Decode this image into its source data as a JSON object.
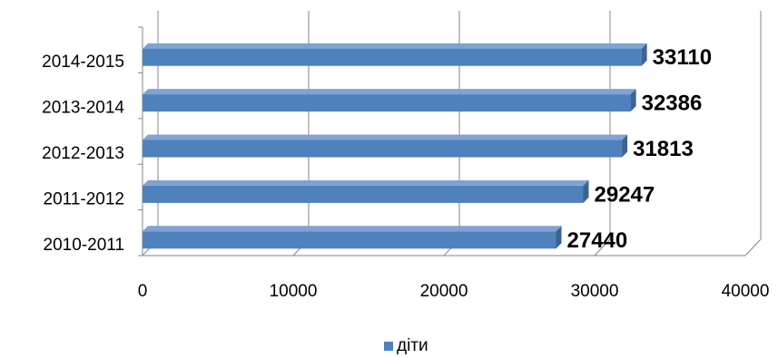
{
  "colors": {
    "bar_front": "#4F81BD",
    "bar_top": "#7FA3D2",
    "bar_side": "#3A6494",
    "grid": "#868686"
  },
  "chart_data": {
    "type": "bar",
    "orientation": "horizontal",
    "style": "3d",
    "categories": [
      "2010-2011",
      "2011-2012",
      "2012-2013",
      "2013-2014",
      "2014-2015"
    ],
    "series": [
      {
        "name": "діти",
        "values": [
          27440,
          29247,
          31813,
          32386,
          33110
        ]
      }
    ],
    "data_labels": [
      "27440",
      "29247",
      "31813",
      "32386",
      "33110"
    ],
    "xlim": [
      0,
      40000
    ],
    "x_ticks": [
      "0",
      "10000",
      "20000",
      "30000",
      "40000"
    ],
    "grid": true,
    "legend_position": "bottom"
  }
}
